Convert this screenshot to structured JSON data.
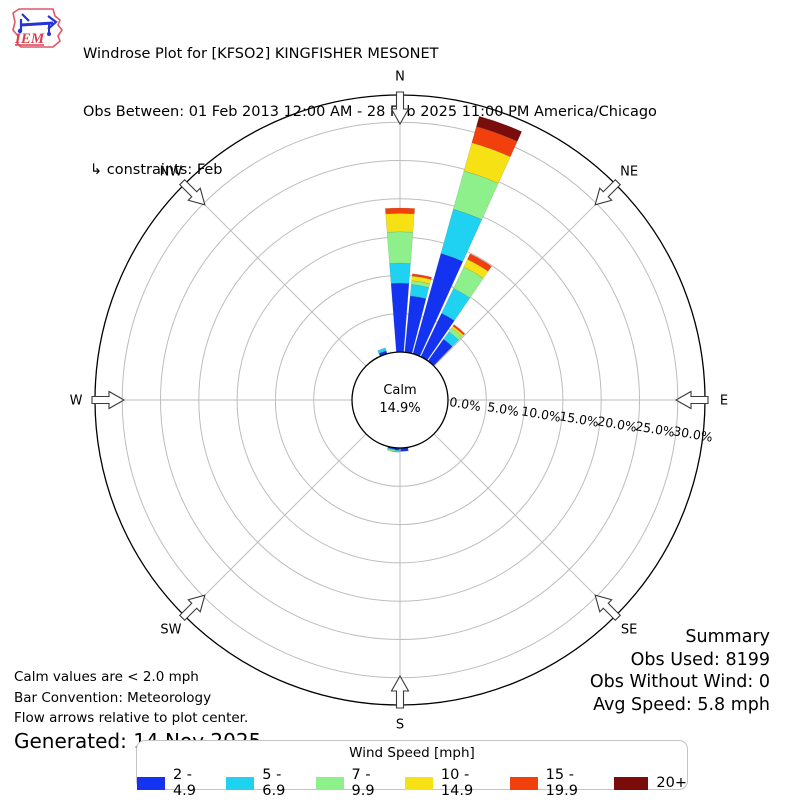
{
  "header": {
    "title": "Windrose Plot for [KFSO2] KINGFISHER MESONET",
    "subtitle": "Obs Between: 01 Feb 2013 12:00 AM - 28 Feb 2025 11:00 PM America/Chicago",
    "constraints": "↳ constraints: Feb",
    "logo_text": "IEM"
  },
  "summary": {
    "title": "Summary",
    "obs_used": "Obs Used: 8199",
    "obs_without_wind": "Obs Without Wind: 0",
    "avg_speed": "Avg Speed: 5.8 mph"
  },
  "footnotes": {
    "calm": "Calm values are < 2.0 mph",
    "bar_convention": "Bar Convention: Meteorology",
    "flow_arrows": "Flow arrows relative to plot center.",
    "generated": "Generated: 14 Nov 2025"
  },
  "legend": {
    "title": "Wind Speed [mph]"
  },
  "chart_data": {
    "type": "windrose",
    "title": "Windrose Plot for [KFSO2] KINGFISHER MESONET",
    "units": "mph",
    "calm": {
      "label": "Calm",
      "value": "14.9%"
    },
    "compass_labels": [
      "N",
      "NE",
      "E",
      "SE",
      "S",
      "SW",
      "W",
      "NW"
    ],
    "ring_ticks": {
      "values_pct": [
        0,
        5,
        10,
        15,
        20,
        25,
        30
      ],
      "labels": [
        "0.0%",
        "5.0%",
        "10.0%",
        "15.0%",
        "20.0%",
        "25.0%",
        "30.0%"
      ]
    },
    "rmax_pct": 33.3,
    "sector_width_deg": 10,
    "speed_bins": [
      {
        "label": "2 - 4.9",
        "color": "#1433f0"
      },
      {
        "label": "5 - 6.9",
        "color": "#1fd2f1"
      },
      {
        "label": "7 - 9.9",
        "color": "#8ef08b"
      },
      {
        "label": "10 - 14.9",
        "color": "#f6e214"
      },
      {
        "label": "15 - 19.9",
        "color": "#f2400d"
      },
      {
        "label": "20+",
        "color": "#7a0c0c"
      }
    ],
    "bars": [
      {
        "dir_deg": 340,
        "values_pct": [
          0.4,
          0.4,
          0,
          0,
          0,
          0
        ]
      },
      {
        "dir_deg": 0,
        "values_pct": [
          9.0,
          2.6,
          4.1,
          2.4,
          0.7,
          0
        ]
      },
      {
        "dir_deg": 10,
        "values_pct": [
          7.4,
          1.5,
          0.5,
          0.6,
          0.3,
          0
        ]
      },
      {
        "dir_deg": 20,
        "values_pct": [
          13.6,
          6.0,
          5.2,
          3.8,
          2.2,
          1.4
        ]
      },
      {
        "dir_deg": 30,
        "values_pct": [
          6.3,
          3.6,
          3.1,
          1.1,
          0.8,
          0
        ]
      },
      {
        "dir_deg": 40,
        "values_pct": [
          3.5,
          1.2,
          0.6,
          0.3,
          0.25,
          0
        ]
      },
      {
        "dir_deg": 175,
        "values_pct": [
          0.45,
          0,
          0,
          0,
          0,
          0
        ]
      },
      {
        "dir_deg": 185,
        "values_pct": [
          0.3,
          0.25,
          0,
          0,
          0,
          0
        ]
      },
      {
        "dir_deg": 190,
        "values_pct": [
          0.2,
          0.1,
          0.2,
          0,
          0,
          0
        ]
      }
    ]
  }
}
